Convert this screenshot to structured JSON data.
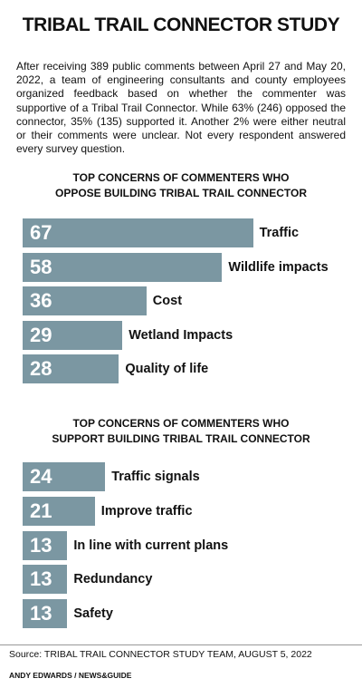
{
  "title": "TRIBAL TRAIL CONNECTOR STUDY",
  "intro": "After receiving 389 public comments between April 27 and May 20, 2022, a team of engineering consultants and county employees organized feedback based on whether the commenter was supportive of a Tribal Trail Connector. While 63% (246) opposed the connector, 35% (135) supported it. Another 2% were either neutral or their comments were unclear. Not every respondent answered every survey question.",
  "chart_data": [
    {
      "type": "bar",
      "orientation": "horizontal",
      "color": "#7b97a2",
      "title": [
        "TOP CONCERNS OF COMMENTERS WHO",
        "OPPOSE BUILDING TRIBAL TRAIL CONNECTOR"
      ],
      "categories": [
        "Traffic",
        "Wildlife impacts",
        "Cost",
        "Wetland Impacts",
        "Quality of life"
      ],
      "values": [
        67,
        58,
        36,
        29,
        28
      ]
    },
    {
      "type": "bar",
      "orientation": "horizontal",
      "color": "#7b97a2",
      "title": [
        "TOP CONCERNS OF COMMENTERS WHO",
        "SUPPORT BUILDING TRIBAL TRAIL CONNECTOR"
      ],
      "categories": [
        "Traffic signals",
        "Improve traffic",
        "In line with current plans",
        "Redundancy",
        "Safety"
      ],
      "values": [
        24,
        21,
        13,
        13,
        13
      ]
    }
  ],
  "source": "Source: TRIBAL TRAIL CONNECTOR STUDY TEAM, AUGUST 5, 2022",
  "credit": "ANDY EDWARDS / NEWS&GUIDE"
}
